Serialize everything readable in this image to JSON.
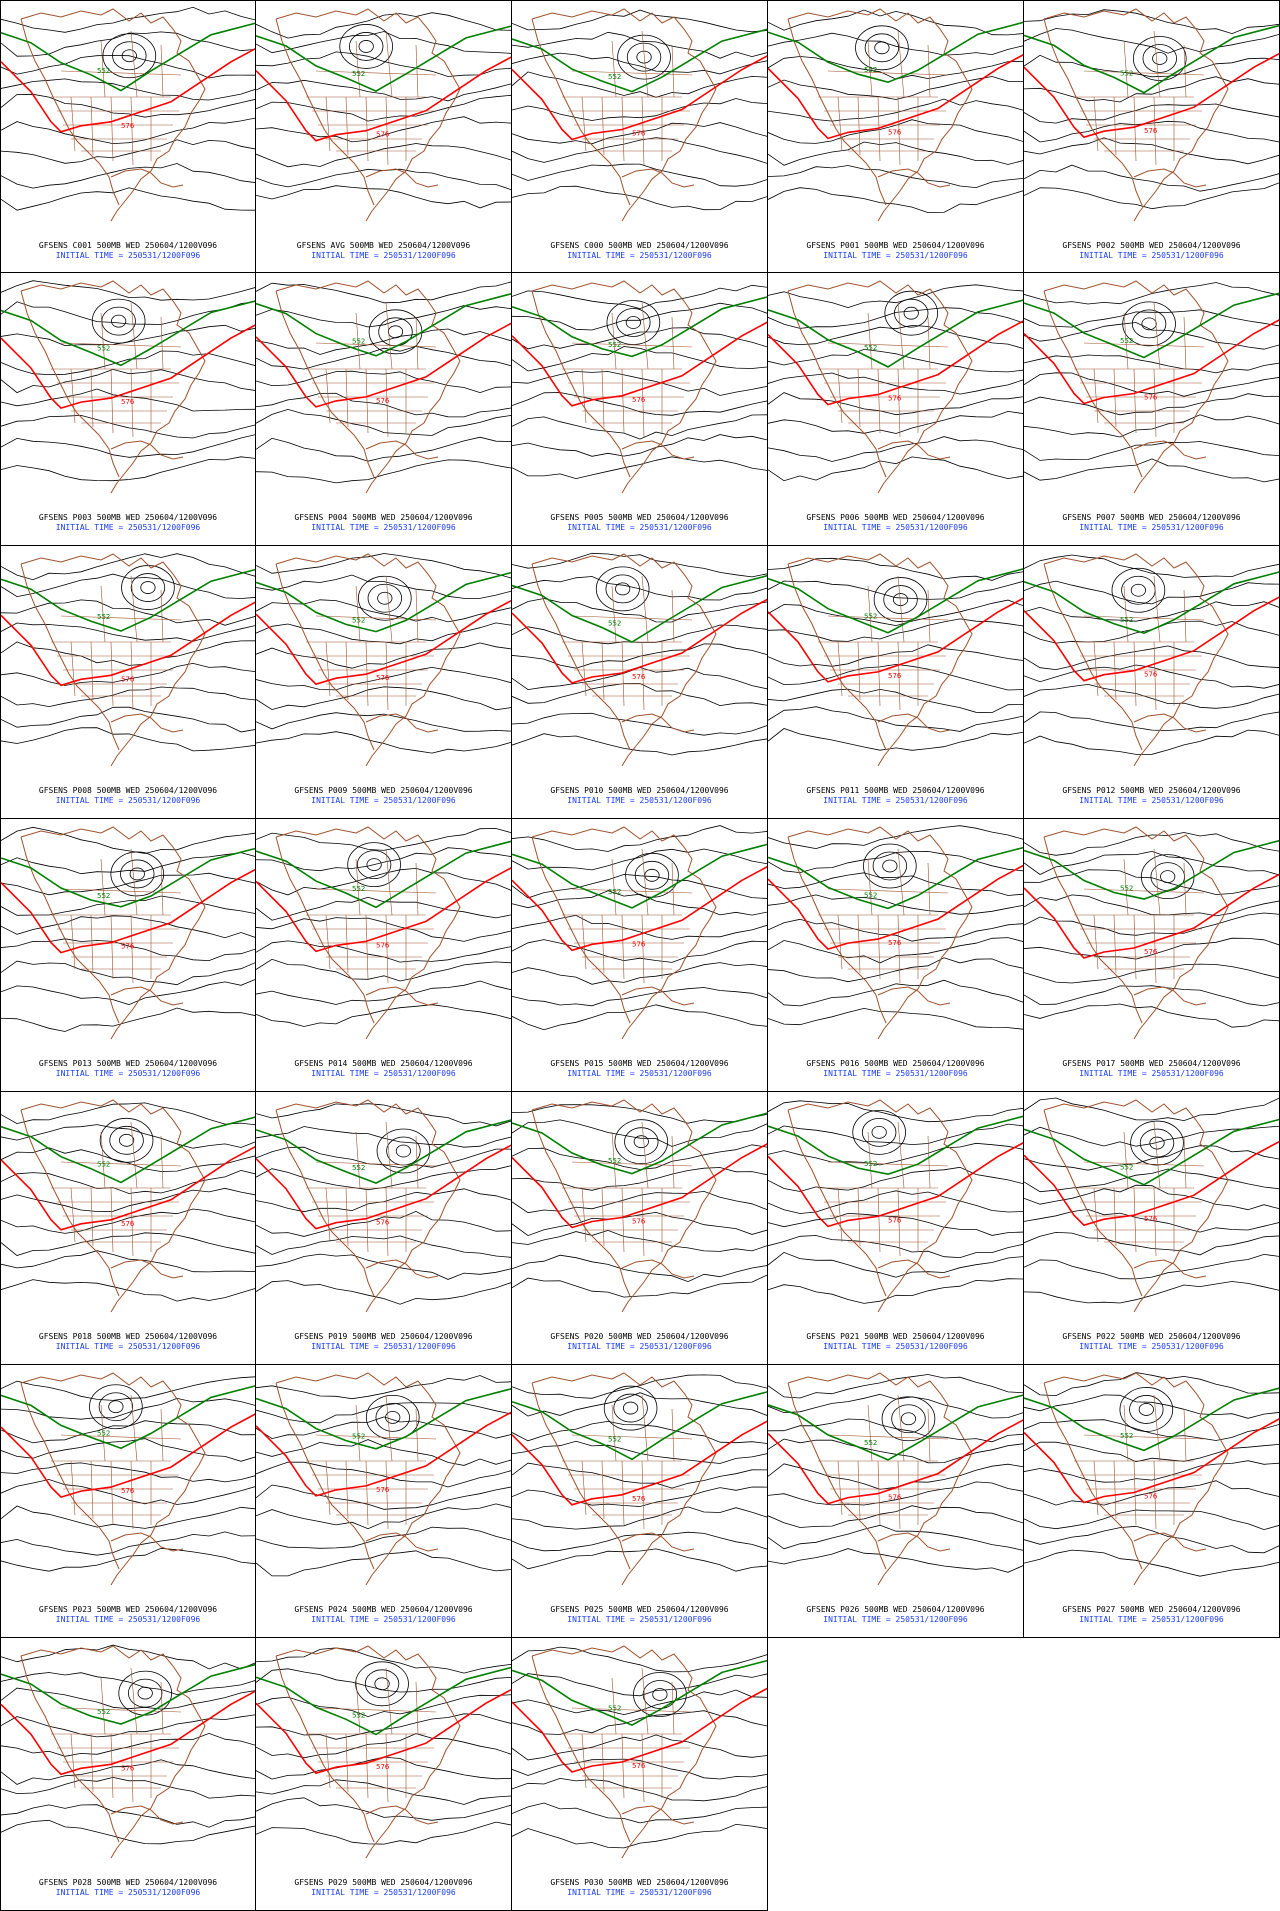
{
  "panels": [
    {
      "title": "GFSENS C001 500MB WED 250604/1200V096",
      "init": "INITIAL TIME = 250531/1200F096",
      "contour_labels": [
        "552",
        "576"
      ]
    },
    {
      "title": "GFSENS AVG 500MB WED 250604/1200V096",
      "init": "INITIAL TIME = 250531/1200F096",
      "contour_labels": [
        "552",
        "576"
      ]
    },
    {
      "title": "GFSENS C000 500MB WED 250604/1200V096",
      "init": "INITIAL TIME = 250531/1200F096",
      "contour_labels": [
        "552",
        "576"
      ]
    },
    {
      "title": "GFSENS P001 500MB WED 250604/1200V096",
      "init": "INITIAL TIME = 250531/1200F096",
      "contour_labels": [
        "552",
        "576"
      ]
    },
    {
      "title": "GFSENS P002 500MB WED 250604/1200V096",
      "init": "INITIAL TIME = 250531/1200F096",
      "contour_labels": [
        "552",
        "576"
      ]
    },
    {
      "title": "GFSENS P003 500MB WED 250604/1200V096",
      "init": "INITIAL TIME = 250531/1200F096",
      "contour_labels": [
        "552",
        "576"
      ]
    },
    {
      "title": "GFSENS P004 500MB WED 250604/1200V096",
      "init": "INITIAL TIME = 250531/1200F096",
      "contour_labels": [
        "552",
        "576"
      ]
    },
    {
      "title": "GFSENS P005 500MB WED 250604/1200V096",
      "init": "INITIAL TIME = 250531/1200F096",
      "contour_labels": [
        "552",
        "576"
      ]
    },
    {
      "title": "GFSENS P006 500MB WED 250604/1200V096",
      "init": "INITIAL TIME = 250531/1200F096",
      "contour_labels": [
        "552",
        "576"
      ]
    },
    {
      "title": "GFSENS P007 500MB WED 250604/1200V096",
      "init": "INITIAL TIME = 250531/1200F096",
      "contour_labels": [
        "552",
        "576"
      ]
    },
    {
      "title": "GFSENS P008 500MB WED 250604/1200V096",
      "init": "INITIAL TIME = 250531/1200F096",
      "contour_labels": [
        "552",
        "576"
      ]
    },
    {
      "title": "GFSENS P009 500MB WED 250604/1200V096",
      "init": "INITIAL TIME = 250531/1200F096",
      "contour_labels": [
        "552",
        "576"
      ]
    },
    {
      "title": "GFSENS P010 500MB WED 250604/1200V096",
      "init": "INITIAL TIME = 250531/1200F096",
      "contour_labels": [
        "552",
        "576"
      ]
    },
    {
      "title": "GFSENS P011 500MB WED 250604/1200V096",
      "init": "INITIAL TIME = 250531/1200F096",
      "contour_labels": [
        "552",
        "576"
      ]
    },
    {
      "title": "GFSENS P012 500MB WED 250604/1200V096",
      "init": "INITIAL TIME = 250531/1200F096",
      "contour_labels": [
        "552",
        "576"
      ]
    },
    {
      "title": "GFSENS P013 500MB WED 250604/1200V096",
      "init": "INITIAL TIME = 250531/1200F096",
      "contour_labels": [
        "552",
        "576"
      ]
    },
    {
      "title": "GFSENS P014 500MB WED 250604/1200V096",
      "init": "INITIAL TIME = 250531/1200F096",
      "contour_labels": [
        "552",
        "576"
      ]
    },
    {
      "title": "GFSENS P015 500MB WED 250604/1200V096",
      "init": "INITIAL TIME = 250531/1200F096",
      "contour_labels": [
        "552",
        "576"
      ]
    },
    {
      "title": "GFSENS P016 500MB WED 250604/1200V096",
      "init": "INITIAL TIME = 250531/1200F096",
      "contour_labels": [
        "552",
        "576"
      ]
    },
    {
      "title": "GFSENS P017 500MB WED 250604/1200V096",
      "init": "INITIAL TIME = 250531/1200F096",
      "contour_labels": [
        "552",
        "576"
      ]
    },
    {
      "title": "GFSENS P018 500MB WED 250604/1200V096",
      "init": "INITIAL TIME = 250531/1200F096",
      "contour_labels": [
        "552",
        "576"
      ]
    },
    {
      "title": "GFSENS P019 500MB WED 250604/1200V096",
      "init": "INITIAL TIME = 250531/1200F096",
      "contour_labels": [
        "552",
        "576"
      ]
    },
    {
      "title": "GFSENS P020 500MB WED 250604/1200V096",
      "init": "INITIAL TIME = 250531/1200F096",
      "contour_labels": [
        "552",
        "576"
      ]
    },
    {
      "title": "GFSENS P021 500MB WED 250604/1200V096",
      "init": "INITIAL TIME = 250531/1200F096",
      "contour_labels": [
        "552",
        "576"
      ]
    },
    {
      "title": "GFSENS P022 500MB WED 250604/1200V096",
      "init": "INITIAL TIME = 250531/1200F096",
      "contour_labels": [
        "552",
        "576"
      ]
    },
    {
      "title": "GFSENS P023 500MB WED 250604/1200V096",
      "init": "INITIAL TIME = 250531/1200F096",
      "contour_labels": [
        "552",
        "576"
      ]
    },
    {
      "title": "GFSENS P024 500MB WED 250604/1200V096",
      "init": "INITIAL TIME = 250531/1200F096",
      "contour_labels": [
        "552",
        "576"
      ]
    },
    {
      "title": "GFSENS P025 500MB WED 250604/1200V096",
      "init": "INITIAL TIME = 250531/1200F096",
      "contour_labels": [
        "552",
        "576"
      ]
    },
    {
      "title": "GFSENS P026 500MB WED 250604/1200V096",
      "init": "INITIAL TIME = 250531/1200F096",
      "contour_labels": [
        "552",
        "576"
      ]
    },
    {
      "title": "GFSENS P027 500MB WED 250604/1200V096",
      "init": "INITIAL TIME = 250531/1200F096",
      "contour_labels": [
        "552",
        "576"
      ]
    },
    {
      "title": "GFSENS P028 500MB WED 250604/1200V096",
      "init": "INITIAL TIME = 250531/1200F096",
      "contour_labels": [
        "552",
        "576"
      ]
    },
    {
      "title": "GFSENS P029 500MB WED 250604/1200V096",
      "init": "INITIAL TIME = 250531/1200F096",
      "contour_labels": [
        "552",
        "576"
      ]
    },
    {
      "title": "GFSENS P030 500MB WED 250604/1200V096",
      "init": "INITIAL TIME = 250531/1200F096",
      "contour_labels": [
        "552",
        "576"
      ]
    }
  ],
  "colors": {
    "coastline": "#a0522d",
    "contour": "#000000",
    "contour_552": "#008000",
    "contour_576": "#ff0000",
    "low_marker": "#1e90ff",
    "title_text": "#000000",
    "init_text": "#1a3cff",
    "border": "#000000"
  }
}
